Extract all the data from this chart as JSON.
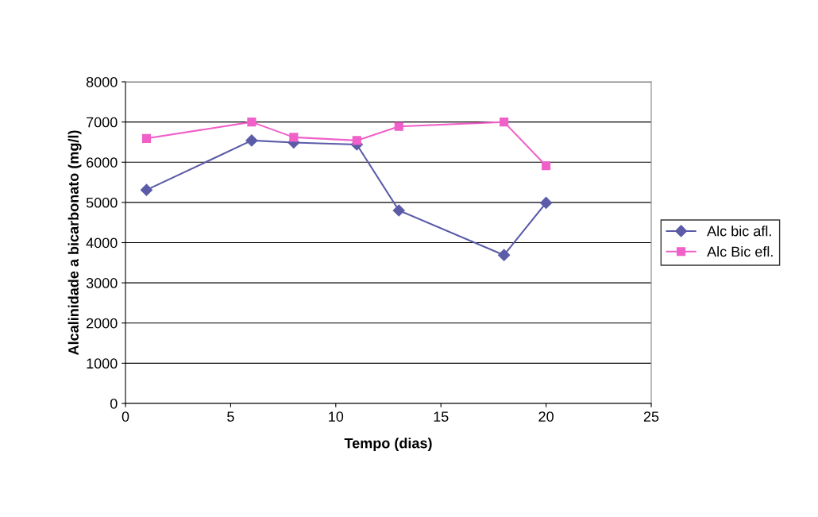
{
  "chart_data": {
    "type": "line",
    "xlabel": "Tempo (dias)",
    "ylabel": "Alcalinidade a bicarbonato (mg/l)",
    "x": [
      1,
      6,
      8,
      11,
      13,
      18,
      20
    ],
    "series": [
      {
        "name": "Alc bic afl.",
        "color": "#5b5ba8",
        "marker": "diamond",
        "values": [
          5310,
          6540,
          6490,
          6440,
          4800,
          3690,
          4990
        ]
      },
      {
        "name": "Alc Bic efl.",
        "color": "#f060c8",
        "marker": "square",
        "values": [
          6590,
          7000,
          6620,
          6540,
          6890,
          7000,
          5910
        ]
      }
    ],
    "xlim": [
      0,
      25
    ],
    "xticks": [
      0,
      5,
      10,
      15,
      20,
      25
    ],
    "ylim": [
      0,
      8000
    ],
    "yticks": [
      0,
      1000,
      2000,
      3000,
      4000,
      5000,
      6000,
      7000,
      8000
    ],
    "grid": "y",
    "legend": "right"
  }
}
